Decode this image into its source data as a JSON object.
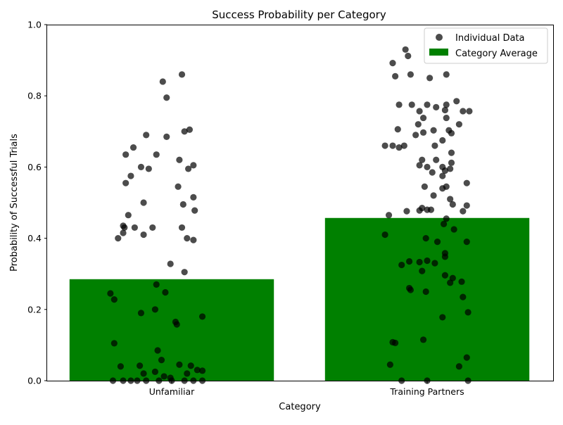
{
  "chart_data": {
    "type": "bar",
    "title": "Success Probability per Category",
    "xlabel": "Category",
    "ylabel": "Probability of Successful Trials",
    "ylim": [
      0,
      1
    ],
    "yticks": [
      "0.0",
      "0.2",
      "0.4",
      "0.6",
      "0.8",
      "1.0"
    ],
    "categories": [
      "Unfamiliar",
      "Training Partners"
    ],
    "grid": false,
    "legend_position": "top-right",
    "colors": {
      "bar": "#008000",
      "points": "#000000"
    },
    "series": [
      {
        "name": "Category Average",
        "type": "bar",
        "values": [
          0.285,
          0.457
        ]
      },
      {
        "name": "Individual Data",
        "type": "scatter",
        "points": [
          {
            "cat": 0,
            "offset": 0.08,
            "y": 0.86
          },
          {
            "cat": 0,
            "offset": -0.07,
            "y": 0.84
          },
          {
            "cat": 0,
            "offset": -0.04,
            "y": 0.795
          },
          {
            "cat": 0,
            "offset": 0.14,
            "y": 0.705
          },
          {
            "cat": 0,
            "offset": 0.1,
            "y": 0.7
          },
          {
            "cat": 0,
            "offset": -0.2,
            "y": 0.69
          },
          {
            "cat": 0,
            "offset": -0.04,
            "y": 0.685
          },
          {
            "cat": 0,
            "offset": -0.3,
            "y": 0.655
          },
          {
            "cat": 0,
            "offset": -0.36,
            "y": 0.635
          },
          {
            "cat": 0,
            "offset": -0.12,
            "y": 0.635
          },
          {
            "cat": 0,
            "offset": 0.06,
            "y": 0.62
          },
          {
            "cat": 0,
            "offset": 0.17,
            "y": 0.605
          },
          {
            "cat": 0,
            "offset": -0.24,
            "y": 0.6
          },
          {
            "cat": 0,
            "offset": -0.18,
            "y": 0.595
          },
          {
            "cat": 0,
            "offset": 0.13,
            "y": 0.595
          },
          {
            "cat": 0,
            "offset": -0.32,
            "y": 0.575
          },
          {
            "cat": 0,
            "offset": -0.36,
            "y": 0.555
          },
          {
            "cat": 0,
            "offset": 0.05,
            "y": 0.545
          },
          {
            "cat": 0,
            "offset": 0.17,
            "y": 0.515
          },
          {
            "cat": 0,
            "offset": -0.22,
            "y": 0.5
          },
          {
            "cat": 0,
            "offset": 0.09,
            "y": 0.495
          },
          {
            "cat": 0,
            "offset": 0.18,
            "y": 0.478
          },
          {
            "cat": 0,
            "offset": -0.34,
            "y": 0.465
          },
          {
            "cat": 0,
            "offset": -0.38,
            "y": 0.435
          },
          {
            "cat": 0,
            "offset": -0.37,
            "y": 0.43
          },
          {
            "cat": 0,
            "offset": -0.29,
            "y": 0.43
          },
          {
            "cat": 0,
            "offset": -0.15,
            "y": 0.43
          },
          {
            "cat": 0,
            "offset": 0.08,
            "y": 0.43
          },
          {
            "cat": 0,
            "offset": -0.38,
            "y": 0.415
          },
          {
            "cat": 0,
            "offset": -0.22,
            "y": 0.41
          },
          {
            "cat": 0,
            "offset": -0.42,
            "y": 0.4
          },
          {
            "cat": 0,
            "offset": 0.12,
            "y": 0.4
          },
          {
            "cat": 0,
            "offset": 0.17,
            "y": 0.395
          },
          {
            "cat": 0,
            "offset": -0.01,
            "y": 0.328
          },
          {
            "cat": 0,
            "offset": 0.1,
            "y": 0.305
          },
          {
            "cat": 0,
            "offset": -0.12,
            "y": 0.27
          },
          {
            "cat": 0,
            "offset": -0.05,
            "y": 0.248
          },
          {
            "cat": 0,
            "offset": -0.48,
            "y": 0.245
          },
          {
            "cat": 0,
            "offset": -0.45,
            "y": 0.228
          },
          {
            "cat": 0,
            "offset": -0.13,
            "y": 0.2
          },
          {
            "cat": 0,
            "offset": -0.24,
            "y": 0.19
          },
          {
            "cat": 0,
            "offset": 0.24,
            "y": 0.18
          },
          {
            "cat": 0,
            "offset": 0.03,
            "y": 0.165
          },
          {
            "cat": 0,
            "offset": 0.04,
            "y": 0.158
          },
          {
            "cat": 0,
            "offset": -0.45,
            "y": 0.105
          },
          {
            "cat": 0,
            "offset": -0.11,
            "y": 0.085
          },
          {
            "cat": 0,
            "offset": -0.08,
            "y": 0.058
          },
          {
            "cat": 0,
            "offset": -0.4,
            "y": 0.04
          },
          {
            "cat": 0,
            "offset": -0.25,
            "y": 0.042
          },
          {
            "cat": 0,
            "offset": 0.06,
            "y": 0.045
          },
          {
            "cat": 0,
            "offset": 0.15,
            "y": 0.042
          },
          {
            "cat": 0,
            "offset": 0.2,
            "y": 0.03
          },
          {
            "cat": 0,
            "offset": 0.24,
            "y": 0.028
          },
          {
            "cat": 0,
            "offset": -0.13,
            "y": 0.025
          },
          {
            "cat": 0,
            "offset": -0.22,
            "y": 0.02
          },
          {
            "cat": 0,
            "offset": 0.12,
            "y": 0.02
          },
          {
            "cat": 0,
            "offset": -0.06,
            "y": 0.012
          },
          {
            "cat": 0,
            "offset": -0.01,
            "y": 0.008
          },
          {
            "cat": 0,
            "offset": -0.46,
            "y": 0.0
          },
          {
            "cat": 0,
            "offset": -0.38,
            "y": 0.0
          },
          {
            "cat": 0,
            "offset": -0.32,
            "y": 0.0
          },
          {
            "cat": 0,
            "offset": -0.27,
            "y": 0.0
          },
          {
            "cat": 0,
            "offset": -0.2,
            "y": 0.0
          },
          {
            "cat": 0,
            "offset": -0.1,
            "y": 0.0
          },
          {
            "cat": 0,
            "offset": 0.0,
            "y": 0.0
          },
          {
            "cat": 0,
            "offset": 0.1,
            "y": 0.0
          },
          {
            "cat": 0,
            "offset": 0.17,
            "y": 0.0
          },
          {
            "cat": 0,
            "offset": 0.24,
            "y": 0.0
          },
          {
            "cat": 1,
            "offset": -0.17,
            "y": 0.93
          },
          {
            "cat": 1,
            "offset": -0.15,
            "y": 0.912
          },
          {
            "cat": 1,
            "offset": -0.27,
            "y": 0.892
          },
          {
            "cat": 1,
            "offset": -0.13,
            "y": 0.86
          },
          {
            "cat": 1,
            "offset": 0.15,
            "y": 0.86
          },
          {
            "cat": 1,
            "offset": -0.25,
            "y": 0.855
          },
          {
            "cat": 1,
            "offset": 0.02,
            "y": 0.85
          },
          {
            "cat": 1,
            "offset": 0.23,
            "y": 0.785
          },
          {
            "cat": 1,
            "offset": -0.22,
            "y": 0.775
          },
          {
            "cat": 1,
            "offset": -0.12,
            "y": 0.775
          },
          {
            "cat": 1,
            "offset": 0.0,
            "y": 0.775
          },
          {
            "cat": 1,
            "offset": 0.15,
            "y": 0.775
          },
          {
            "cat": 1,
            "offset": 0.07,
            "y": 0.768
          },
          {
            "cat": 1,
            "offset": 0.14,
            "y": 0.76
          },
          {
            "cat": 1,
            "offset": -0.06,
            "y": 0.757
          },
          {
            "cat": 1,
            "offset": 0.28,
            "y": 0.757
          },
          {
            "cat": 1,
            "offset": 0.33,
            "y": 0.757
          },
          {
            "cat": 1,
            "offset": 0.15,
            "y": 0.738
          },
          {
            "cat": 1,
            "offset": -0.03,
            "y": 0.738
          },
          {
            "cat": 1,
            "offset": -0.07,
            "y": 0.72
          },
          {
            "cat": 1,
            "offset": 0.25,
            "y": 0.72
          },
          {
            "cat": 1,
            "offset": -0.23,
            "y": 0.706
          },
          {
            "cat": 1,
            "offset": 0.05,
            "y": 0.703
          },
          {
            "cat": 1,
            "offset": 0.17,
            "y": 0.703
          },
          {
            "cat": 1,
            "offset": -0.03,
            "y": 0.697
          },
          {
            "cat": 1,
            "offset": 0.19,
            "y": 0.695
          },
          {
            "cat": 1,
            "offset": -0.09,
            "y": 0.69
          },
          {
            "cat": 1,
            "offset": 0.12,
            "y": 0.675
          },
          {
            "cat": 1,
            "offset": -0.33,
            "y": 0.66
          },
          {
            "cat": 1,
            "offset": -0.27,
            "y": 0.66
          },
          {
            "cat": 1,
            "offset": -0.18,
            "y": 0.66
          },
          {
            "cat": 1,
            "offset": 0.06,
            "y": 0.66
          },
          {
            "cat": 1,
            "offset": -0.22,
            "y": 0.655
          },
          {
            "cat": 1,
            "offset": 0.19,
            "y": 0.64
          },
          {
            "cat": 1,
            "offset": -0.04,
            "y": 0.62
          },
          {
            "cat": 1,
            "offset": 0.07,
            "y": 0.62
          },
          {
            "cat": 1,
            "offset": 0.19,
            "y": 0.612
          },
          {
            "cat": 1,
            "offset": -0.06,
            "y": 0.605
          },
          {
            "cat": 1,
            "offset": 0.0,
            "y": 0.6
          },
          {
            "cat": 1,
            "offset": 0.12,
            "y": 0.6
          },
          {
            "cat": 1,
            "offset": 0.18,
            "y": 0.595
          },
          {
            "cat": 1,
            "offset": 0.14,
            "y": 0.59
          },
          {
            "cat": 1,
            "offset": 0.04,
            "y": 0.585
          },
          {
            "cat": 1,
            "offset": 0.12,
            "y": 0.575
          },
          {
            "cat": 1,
            "offset": 0.31,
            "y": 0.555
          },
          {
            "cat": 1,
            "offset": -0.02,
            "y": 0.545
          },
          {
            "cat": 1,
            "offset": 0.15,
            "y": 0.545
          },
          {
            "cat": 1,
            "offset": 0.12,
            "y": 0.54
          },
          {
            "cat": 1,
            "offset": 0.05,
            "y": 0.52
          },
          {
            "cat": 1,
            "offset": 0.18,
            "y": 0.51
          },
          {
            "cat": 1,
            "offset": 0.2,
            "y": 0.495
          },
          {
            "cat": 1,
            "offset": 0.31,
            "y": 0.492
          },
          {
            "cat": 1,
            "offset": -0.04,
            "y": 0.485
          },
          {
            "cat": 1,
            "offset": 0.03,
            "y": 0.48
          },
          {
            "cat": 1,
            "offset": 0.0,
            "y": 0.48
          },
          {
            "cat": 1,
            "offset": -0.06,
            "y": 0.478
          },
          {
            "cat": 1,
            "offset": -0.16,
            "y": 0.476
          },
          {
            "cat": 1,
            "offset": 0.28,
            "y": 0.476
          },
          {
            "cat": 1,
            "offset": -0.3,
            "y": 0.465
          },
          {
            "cat": 1,
            "offset": 0.15,
            "y": 0.455
          },
          {
            "cat": 1,
            "offset": 0.13,
            "y": 0.44
          },
          {
            "cat": 1,
            "offset": 0.21,
            "y": 0.425
          },
          {
            "cat": 1,
            "offset": -0.33,
            "y": 0.41
          },
          {
            "cat": 1,
            "offset": -0.01,
            "y": 0.4
          },
          {
            "cat": 1,
            "offset": 0.08,
            "y": 0.39
          },
          {
            "cat": 1,
            "offset": 0.31,
            "y": 0.39
          },
          {
            "cat": 1,
            "offset": 0.14,
            "y": 0.358
          },
          {
            "cat": 1,
            "offset": 0.14,
            "y": 0.348
          },
          {
            "cat": 1,
            "offset": -0.14,
            "y": 0.335
          },
          {
            "cat": 1,
            "offset": 0.0,
            "y": 0.337
          },
          {
            "cat": 1,
            "offset": -0.06,
            "y": 0.333
          },
          {
            "cat": 1,
            "offset": 0.06,
            "y": 0.33
          },
          {
            "cat": 1,
            "offset": -0.2,
            "y": 0.325
          },
          {
            "cat": 1,
            "offset": -0.04,
            "y": 0.308
          },
          {
            "cat": 1,
            "offset": 0.14,
            "y": 0.296
          },
          {
            "cat": 1,
            "offset": 0.2,
            "y": 0.288
          },
          {
            "cat": 1,
            "offset": 0.27,
            "y": 0.278
          },
          {
            "cat": 1,
            "offset": 0.18,
            "y": 0.275
          },
          {
            "cat": 1,
            "offset": -0.14,
            "y": 0.26
          },
          {
            "cat": 1,
            "offset": -0.13,
            "y": 0.255
          },
          {
            "cat": 1,
            "offset": -0.01,
            "y": 0.25
          },
          {
            "cat": 1,
            "offset": 0.28,
            "y": 0.235
          },
          {
            "cat": 1,
            "offset": 0.32,
            "y": 0.192
          },
          {
            "cat": 1,
            "offset": 0.12,
            "y": 0.178
          },
          {
            "cat": 1,
            "offset": -0.03,
            "y": 0.115
          },
          {
            "cat": 1,
            "offset": -0.27,
            "y": 0.108
          },
          {
            "cat": 1,
            "offset": -0.25,
            "y": 0.106
          },
          {
            "cat": 1,
            "offset": 0.31,
            "y": 0.065
          },
          {
            "cat": 1,
            "offset": -0.29,
            "y": 0.045
          },
          {
            "cat": 1,
            "offset": 0.25,
            "y": 0.04
          },
          {
            "cat": 1,
            "offset": -0.2,
            "y": 0.0
          },
          {
            "cat": 1,
            "offset": 0.0,
            "y": 0.0
          },
          {
            "cat": 1,
            "offset": 0.32,
            "y": 0.0
          }
        ]
      }
    ]
  }
}
